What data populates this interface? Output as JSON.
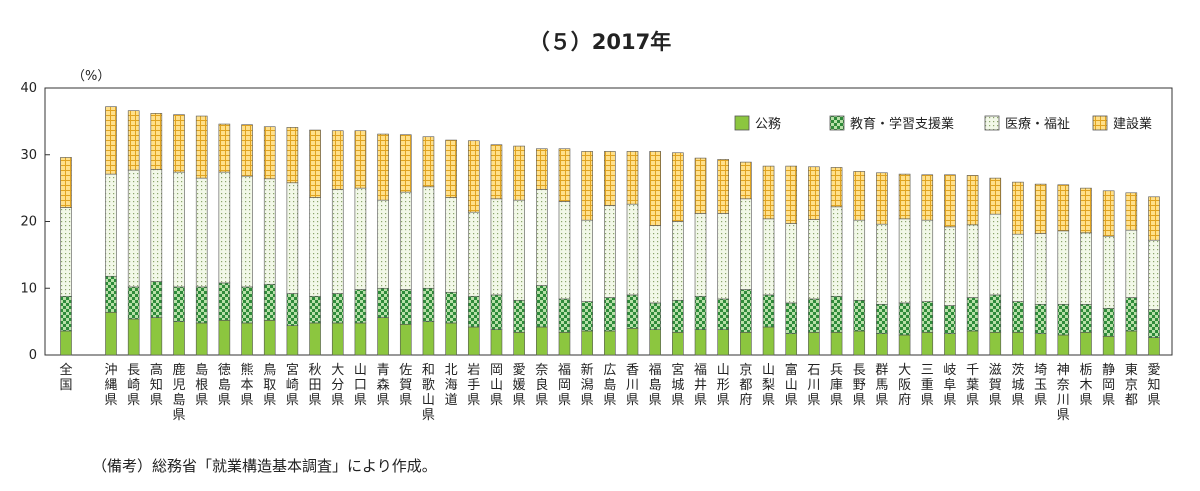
{
  "chart_data": {
    "type": "bar",
    "stacked": true,
    "title": "（５）2017年",
    "ylabel": "（%）",
    "xlabel": "",
    "ylim": [
      0,
      40
    ],
    "yticks": [
      0,
      10,
      20,
      30,
      40
    ],
    "grid": false,
    "legend_position": "top-right",
    "categories": [
      "全国",
      "沖縄県",
      "長崎県",
      "高知県",
      "鹿児島県",
      "島根県",
      "徳島県",
      "熊本県",
      "鳥取県",
      "宮崎県",
      "秋田県",
      "大分県",
      "山口県",
      "青森県",
      "佐賀県",
      "和歌山県",
      "北海道",
      "岩手県",
      "岡山県",
      "愛媛県",
      "奈良県",
      "福岡県",
      "新潟県",
      "広島県",
      "香川県",
      "福島県",
      "宮城県",
      "福井県",
      "山形県",
      "京都府",
      "山梨県",
      "富山県",
      "石川県",
      "兵庫県",
      "長野県",
      "群馬県",
      "大阪府",
      "三重県",
      "岐阜県",
      "千葉県",
      "滋賀県",
      "茨城県",
      "埼玉県",
      "神奈川県",
      "栃木県",
      "静岡県",
      "東京都",
      "愛知県"
    ],
    "series": [
      {
        "name": "公務",
        "color": "#8cc63f",
        "pattern": "solid",
        "values": [
          3.6,
          6.4,
          5.4,
          5.6,
          5.0,
          4.8,
          5.2,
          4.8,
          5.2,
          4.4,
          4.8,
          4.8,
          4.8,
          5.6,
          4.6,
          5.0,
          4.8,
          4.2,
          3.8,
          3.4,
          4.2,
          3.4,
          3.6,
          3.6,
          4.0,
          3.8,
          3.4,
          3.8,
          3.8,
          3.4,
          4.2,
          3.2,
          3.4,
          3.4,
          3.6,
          3.2,
          3.0,
          3.4,
          3.2,
          3.6,
          3.4,
          3.4,
          3.2,
          3.0,
          3.4,
          2.8,
          3.6,
          2.6
        ]
      },
      {
        "name": "教育・学習支援業",
        "color": "#2e8b3a",
        "pattern": "checker",
        "values": [
          5.2,
          5.4,
          4.8,
          5.4,
          5.2,
          5.4,
          5.6,
          5.4,
          5.4,
          4.8,
          4.0,
          4.4,
          5.0,
          4.4,
          5.2,
          5.0,
          4.6,
          4.6,
          5.2,
          4.8,
          6.2,
          5.0,
          4.4,
          5.0,
          5.0,
          4.0,
          4.8,
          5.0,
          4.6,
          6.4,
          4.8,
          4.6,
          5.0,
          5.4,
          4.6,
          4.4,
          4.8,
          4.6,
          4.2,
          5.0,
          5.6,
          4.6,
          4.4,
          4.6,
          4.2,
          4.2,
          5.0,
          4.2
        ]
      },
      {
        "name": "医療・福祉",
        "color": "#e8f3d8",
        "pattern": "dots",
        "values": [
          13.3,
          15.3,
          17.5,
          16.8,
          17.2,
          16.3,
          16.6,
          16.6,
          15.8,
          16.6,
          14.8,
          15.6,
          15.2,
          13.2,
          14.6,
          15.2,
          14.2,
          12.6,
          14.4,
          15.0,
          14.4,
          14.6,
          12.2,
          13.8,
          13.6,
          11.6,
          11.8,
          12.4,
          12.8,
          13.6,
          11.4,
          11.9,
          11.9,
          13.4,
          12.0,
          12.0,
          12.6,
          12.2,
          11.8,
          10.9,
          12.1,
          10.1,
          10.6,
          11.0,
          10.7,
          10.8,
          10.1,
          10.4
        ]
      },
      {
        "name": "建設業",
        "color": "#ffd966",
        "pattern": "grid",
        "values": [
          7.5,
          10.1,
          8.9,
          8.4,
          8.6,
          9.3,
          7.2,
          7.7,
          7.8,
          8.3,
          10.1,
          8.8,
          8.6,
          9.9,
          8.6,
          7.5,
          8.6,
          10.7,
          8.1,
          8.1,
          6.1,
          7.9,
          10.3,
          8.1,
          7.9,
          11.1,
          10.3,
          8.3,
          8.1,
          5.5,
          7.9,
          8.6,
          7.9,
          5.9,
          7.3,
          7.7,
          6.7,
          6.8,
          7.8,
          7.4,
          5.4,
          7.8,
          7.4,
          6.9,
          6.7,
          6.8,
          5.6,
          6.5
        ]
      }
    ]
  },
  "note": "（備考）総務省「就業構造基本調査」により作成。"
}
